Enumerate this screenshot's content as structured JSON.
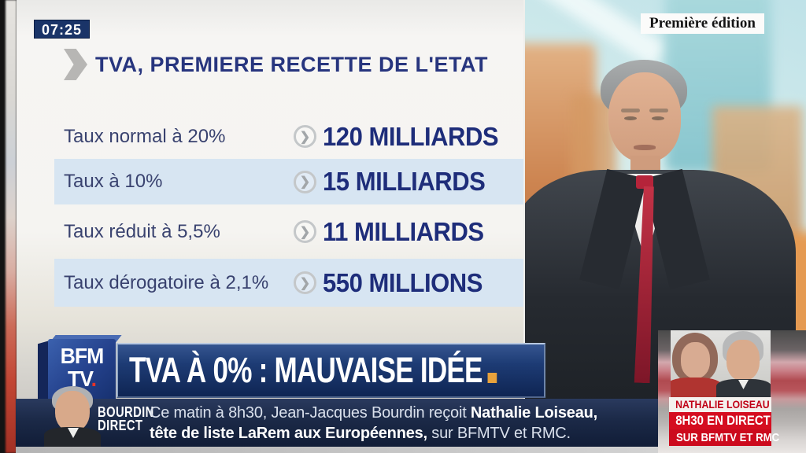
{
  "status_bar": {
    "time": "07:25",
    "program_label": "Première édition"
  },
  "infographic": {
    "title": "TVA, PREMIERE RECETTE DE L'ETAT",
    "rows": [
      {
        "label": "Taux normal à 20%",
        "value": "120 MILLIARDS"
      },
      {
        "label": "Taux à 10%",
        "value": "15 MILLIARDS"
      },
      {
        "label": "Taux réduit à 5,5%",
        "value": "11 MILLIARDS"
      },
      {
        "label": "Taux dérogatoire à 2,1%",
        "value": "550 MILLIONS"
      }
    ],
    "chevron_glyph": "❯"
  },
  "banner": {
    "logo_line1": "BFM",
    "logo_line2": "TV",
    "logo_dot": ".",
    "headline": "TVA À 0% : MAUVAISE IDÉE"
  },
  "ticker": {
    "show_name_line1": "BOURDIN",
    "show_name_line2": "DIRECT",
    "line1_regular": "Ce matin à 8h30, Jean-Jacques Bourdin reçoit ",
    "line1_bold": "Nathalie Loiseau,",
    "line2_bold": "tête de liste LaRem aux Européennes,",
    "line2_regular": " sur BFMTV et RMC."
  },
  "promo": {
    "guest_name": "NATHALIE LOISEAU",
    "time_line": "8H30 EN DIRECT",
    "channels_line": "SUR BFMTV ET RMC"
  },
  "colors": {
    "brand_navy": "#1b3a75",
    "title_blue": "#27357e",
    "value_blue": "#1e2d7a",
    "row_band_blue": "#d7e5f2",
    "promo_red": "#d50d20",
    "accent_orange": "#e8a23c",
    "time_badge_navy": "#1a3468"
  }
}
